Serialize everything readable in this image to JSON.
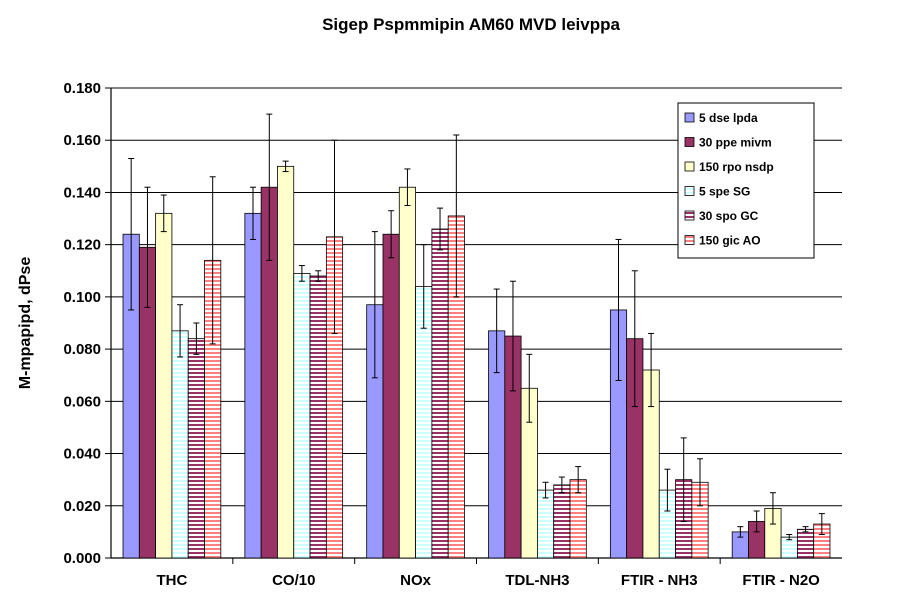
{
  "chart_data": {
    "type": "bar",
    "title": "Sigep Pspmmipin AM60 MVD leivppa",
    "xlabel": "",
    "ylabel": "M-mpapipd, dPse",
    "ylim": [
      0,
      0.18
    ],
    "yticks": [
      "0.000",
      "0.020",
      "0.040",
      "0.060",
      "0.080",
      "0.100",
      "0.120",
      "0.140",
      "0.160",
      "0.180"
    ],
    "categories": [
      "THC",
      "CO/10",
      "NOx",
      "TDL-NH3",
      "FTIR - NH3",
      "FTIR - N2O"
    ],
    "grid": "horizontal",
    "legend_position": "top-right",
    "series": [
      {
        "name": "5 dse lpda",
        "color": "#9999ff",
        "pattern": "solid",
        "values": [
          0.124,
          0.132,
          0.097,
          0.087,
          0.095,
          0.01
        ],
        "errors": [
          0.029,
          0.01,
          0.028,
          0.016,
          0.027,
          0.002
        ]
      },
      {
        "name": "30 ppe mivm",
        "color": "#993366",
        "pattern": "solid",
        "values": [
          0.119,
          0.142,
          0.124,
          0.085,
          0.084,
          0.014
        ],
        "errors": [
          0.023,
          0.028,
          0.009,
          0.021,
          0.026,
          0.004
        ]
      },
      {
        "name": "150 rpo nsdp",
        "color": "#ffffcc",
        "pattern": "solid",
        "values": [
          0.132,
          0.15,
          0.142,
          0.065,
          0.072,
          0.019
        ],
        "errors": [
          0.007,
          0.002,
          0.007,
          0.013,
          0.014,
          0.006
        ]
      },
      {
        "name": "5 spe SG",
        "color": "#ccffff",
        "pattern": "horizontal-lines",
        "values": [
          0.087,
          0.109,
          0.104,
          0.026,
          0.026,
          0.008
        ],
        "errors": [
          0.01,
          0.003,
          0.016,
          0.003,
          0.008,
          0.001
        ]
      },
      {
        "name": "30 spo GC",
        "color": "#993366",
        "pattern": "horizontal-lines",
        "values": [
          0.084,
          0.108,
          0.126,
          0.028,
          0.03,
          0.011
        ],
        "errors": [
          0.006,
          0.002,
          0.008,
          0.003,
          0.016,
          0.001
        ]
      },
      {
        "name": "150 gic AO",
        "color": "#ff8080",
        "pattern": "horizontal-lines",
        "values": [
          0.114,
          0.123,
          0.131,
          0.03,
          0.029,
          0.013
        ],
        "errors": [
          0.032,
          0.037,
          0.031,
          0.005,
          0.009,
          0.004
        ]
      }
    ]
  }
}
